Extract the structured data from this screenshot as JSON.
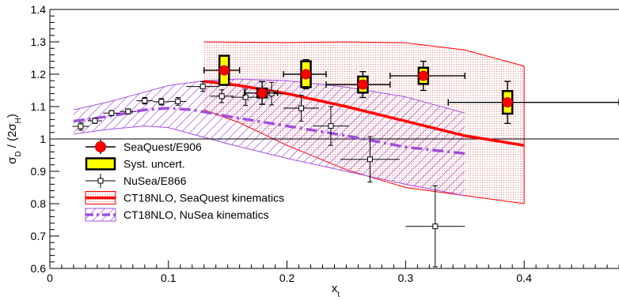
{
  "chart_data": {
    "type": "scatter",
    "xlabel_main": "x",
    "xlabel_sub": "t",
    "ylabel_parts": [
      "σ",
      "D",
      " / (2σ",
      "H",
      ")"
    ],
    "xlim": [
      0,
      0.48
    ],
    "ylim": [
      0.6,
      1.4
    ],
    "x_ticks": [
      0,
      0.1,
      0.2,
      0.3,
      0.4
    ],
    "x_tick_labels": [
      "0",
      "0.1",
      "0.2",
      "0.3",
      "0.4"
    ],
    "y_ticks": [
      0.6,
      0.7,
      0.8,
      0.9,
      1.0,
      1.1,
      1.2,
      1.3,
      1.4
    ],
    "y_tick_labels": [
      "0.6",
      "0.7",
      "0.8",
      "0.9",
      "1",
      "1.1",
      "1.2",
      "1.3",
      "1.4"
    ],
    "reference_line_y": 1.0,
    "legend_position": "bottom-left",
    "legend": [
      {
        "label": "SeaQuest/E906",
        "style": "red-marker"
      },
      {
        "label": "Syst. uncert.",
        "style": "yellow-box"
      },
      {
        "label": "NuSea/E866",
        "style": "open-square"
      },
      {
        "label": "CT18NLO, SeaQuest kinematics",
        "style": "red-band"
      },
      {
        "label": "CT18NLO, NuSea kinematics",
        "style": "violet-band"
      }
    ],
    "series": [
      {
        "name": "SeaQuest/E906",
        "color": "#ff0000",
        "points": [
          {
            "x": 0.147,
            "y": 1.212,
            "xerr": [
              0.017,
              0.013
            ],
            "yerr": 0.045,
            "syst": 0.045
          },
          {
            "x": 0.179,
            "y": 1.142,
            "xerr": [
              0.015,
              0.013
            ],
            "yerr": 0.035,
            "syst": 0.014
          },
          {
            "x": 0.216,
            "y": 1.2,
            "xerr": [
              0.019,
              0.017
            ],
            "yerr": 0.045,
            "syst": 0.04
          },
          {
            "x": 0.264,
            "y": 1.168,
            "xerr": [
              0.031,
              0.023
            ],
            "yerr": 0.04,
            "syst": 0.025
          },
          {
            "x": 0.315,
            "y": 1.195,
            "xerr": [
              0.028,
              0.035
            ],
            "yerr": 0.045,
            "syst": 0.025
          },
          {
            "x": 0.386,
            "y": 1.113,
            "xerr": [
              0.05,
              0.094
            ],
            "yerr": 0.065,
            "syst": 0.035
          }
        ]
      },
      {
        "name": "NuSea/E866",
        "color": "#000000",
        "points": [
          {
            "x": 0.026,
            "y": 1.039,
            "xerr": 0.007,
            "yerr": 0.012
          },
          {
            "x": 0.038,
            "y": 1.056,
            "xerr": 0.006,
            "yerr": 0.008
          },
          {
            "x": 0.052,
            "y": 1.08,
            "xerr": 0.007,
            "yerr": 0.008
          },
          {
            "x": 0.066,
            "y": 1.085,
            "xerr": 0.007,
            "yerr": 0.008
          },
          {
            "x": 0.08,
            "y": 1.118,
            "xerr": 0.007,
            "yerr": 0.01
          },
          {
            "x": 0.094,
            "y": 1.115,
            "xerr": 0.007,
            "yerr": 0.01
          },
          {
            "x": 0.108,
            "y": 1.116,
            "xerr": 0.007,
            "yerr": 0.012
          },
          {
            "x": 0.129,
            "y": 1.162,
            "xerr": 0.014,
            "yerr": 0.015
          },
          {
            "x": 0.145,
            "y": 1.132,
            "xerr": 0.01,
            "yerr": 0.02
          },
          {
            "x": 0.165,
            "y": 1.129,
            "xerr": 0.012,
            "yerr": 0.025
          },
          {
            "x": 0.187,
            "y": 1.14,
            "xerr": 0.01,
            "yerr": 0.035
          },
          {
            "x": 0.212,
            "y": 1.095,
            "xerr": 0.015,
            "yerr": 0.04
          },
          {
            "x": 0.237,
            "y": 1.04,
            "xerr": 0.015,
            "yerr": 0.06
          },
          {
            "x": 0.27,
            "y": 0.937,
            "xerr": 0.025,
            "yerr": 0.07
          },
          {
            "x": 0.325,
            "y": 0.73,
            "xerr": 0.025,
            "yerr": 0.125
          }
        ]
      },
      {
        "name": "CT18NLO, SeaQuest kinematics",
        "color": "#ff0000",
        "central": [
          [
            0.13,
            1.178
          ],
          [
            0.16,
            1.165
          ],
          [
            0.2,
            1.14
          ],
          [
            0.25,
            1.1
          ],
          [
            0.3,
            1.055
          ],
          [
            0.35,
            1.01
          ],
          [
            0.4,
            0.98
          ]
        ],
        "upper": [
          [
            0.13,
            1.3
          ],
          [
            0.2,
            1.298
          ],
          [
            0.25,
            1.3
          ],
          [
            0.3,
            1.297
          ],
          [
            0.35,
            1.275
          ],
          [
            0.4,
            1.225
          ]
        ],
        "lower": [
          [
            0.13,
            1.09
          ],
          [
            0.16,
            1.05
          ],
          [
            0.2,
            0.98
          ],
          [
            0.25,
            0.905
          ],
          [
            0.3,
            0.85
          ],
          [
            0.35,
            0.825
          ],
          [
            0.4,
            0.8
          ]
        ]
      },
      {
        "name": "CT18NLO, NuSea kinematics",
        "color": "#a050e0",
        "central": [
          [
            0.02,
            1.055
          ],
          [
            0.05,
            1.07
          ],
          [
            0.08,
            1.09
          ],
          [
            0.1,
            1.095
          ],
          [
            0.12,
            1.09
          ],
          [
            0.15,
            1.07
          ],
          [
            0.2,
            1.04
          ],
          [
            0.25,
            1.01
          ],
          [
            0.3,
            0.975
          ],
          [
            0.35,
            0.955
          ]
        ],
        "upper": [
          [
            0.02,
            1.09
          ],
          [
            0.05,
            1.115
          ],
          [
            0.08,
            1.145
          ],
          [
            0.1,
            1.165
          ],
          [
            0.13,
            1.18
          ],
          [
            0.16,
            1.185
          ],
          [
            0.2,
            1.18
          ],
          [
            0.25,
            1.16
          ],
          [
            0.3,
            1.13
          ],
          [
            0.35,
            1.08
          ]
        ],
        "lower": [
          [
            0.02,
            1.015
          ],
          [
            0.05,
            1.03
          ],
          [
            0.08,
            1.04
          ],
          [
            0.1,
            1.035
          ],
          [
            0.12,
            1.015
          ],
          [
            0.15,
            0.985
          ],
          [
            0.2,
            0.94
          ],
          [
            0.25,
            0.9
          ],
          [
            0.3,
            0.86
          ],
          [
            0.35,
            0.825
          ]
        ]
      }
    ]
  }
}
